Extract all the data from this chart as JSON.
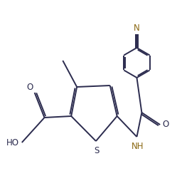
{
  "bg_color": "#ffffff",
  "bond_color": "#2b2b4e",
  "atom_colors": {
    "S": "#2b2b4e",
    "O": "#2b2b4e",
    "N": "#8B6914",
    "C": "#2b2b4e",
    "H": "#2b2b4e"
  },
  "line_width": 1.4,
  "font_size": 8.5,
  "figsize": [
    2.49,
    2.47
  ],
  "dpi": 100,
  "xlim": [
    0,
    10
  ],
  "ylim": [
    0,
    10
  ]
}
